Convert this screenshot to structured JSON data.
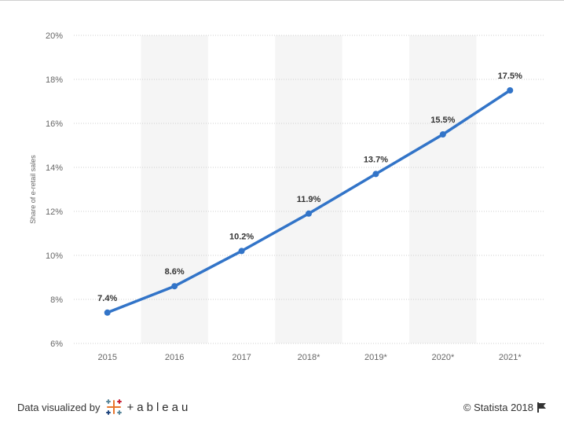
{
  "chart_data": {
    "type": "line",
    "categories": [
      "2015",
      "2016",
      "2017",
      "2018*",
      "2019*",
      "2020*",
      "2021*"
    ],
    "values": [
      7.4,
      8.6,
      10.2,
      11.9,
      13.7,
      15.5,
      17.5
    ],
    "data_labels": [
      "7.4%",
      "8.6%",
      "10.2%",
      "11.9%",
      "13.7%",
      "15.5%",
      "17.5%"
    ],
    "ylabel": "Share of e-retail sales",
    "ylim": [
      6,
      20
    ],
    "yticks": [
      6,
      8,
      10,
      12,
      14,
      16,
      18,
      20
    ],
    "ytick_labels": [
      "6%",
      "8%",
      "10%",
      "12%",
      "14%",
      "16%",
      "18%",
      "20%"
    ],
    "grid": true,
    "line_color": "#3274c8",
    "band_color": "#f5f5f5"
  },
  "footer": {
    "credit_prefix": "Data visualized by",
    "tableau_wordmark": "+ableau",
    "tableau_icon": "tableau-logo-icon",
    "copyright": "© Statista 2018",
    "flag_icon": "flag-icon"
  }
}
